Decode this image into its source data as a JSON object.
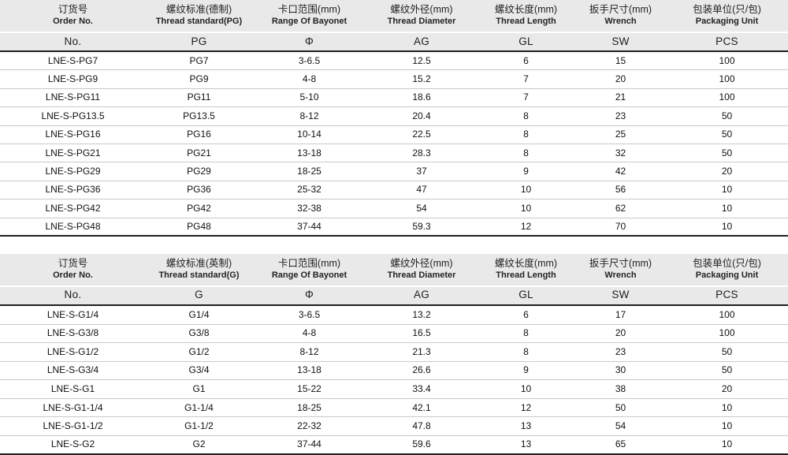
{
  "colors": {
    "header_bg": "#e9e9e9",
    "row_line": "#c9c9c9",
    "strong_line": "#1f1f1f"
  },
  "tables": [
    {
      "name": "pg-metric-thread-table",
      "columns": [
        {
          "cn": "订货号",
          "en": "Order No.",
          "symbol": "No."
        },
        {
          "cn": "螺纹标准(德制)",
          "en": "Thread standard(PG)",
          "symbol": "PG"
        },
        {
          "cn": "卡口范围(mm)",
          "en": "Range Of Bayonet",
          "symbol": "Φ"
        },
        {
          "cn": "螺纹外径(mm)",
          "en": "Thread Diameter",
          "symbol": "AG"
        },
        {
          "cn": "螺纹长度(mm)",
          "en": "Thread Length",
          "symbol": "GL"
        },
        {
          "cn": "扳手尺寸(mm)",
          "en": "Wrench",
          "symbol": "SW"
        },
        {
          "cn": "包装单位(只/包)",
          "en": "Packaging Unit",
          "symbol": "PCS"
        }
      ],
      "rows": [
        [
          "LNE-S-PG7",
          "PG7",
          "3-6.5",
          "12.5",
          "6",
          "15",
          "100"
        ],
        [
          "LNE-S-PG9",
          "PG9",
          "4-8",
          "15.2",
          "7",
          "20",
          "100"
        ],
        [
          "LNE-S-PG11",
          "PG11",
          "5-10",
          "18.6",
          "7",
          "21",
          "100"
        ],
        [
          "LNE-S-PG13.5",
          "PG13.5",
          "8-12",
          "20.4",
          "8",
          "23",
          "50"
        ],
        [
          "LNE-S-PG16",
          "PG16",
          "10-14",
          "22.5",
          "8",
          "25",
          "50"
        ],
        [
          "LNE-S-PG21",
          "PG21",
          "13-18",
          "28.3",
          "8",
          "32",
          "50"
        ],
        [
          "LNE-S-PG29",
          "PG29",
          "18-25",
          "37",
          "9",
          "42",
          "20"
        ],
        [
          "LNE-S-PG36",
          "PG36",
          "25-32",
          "47",
          "10",
          "56",
          "10"
        ],
        [
          "LNE-S-PG42",
          "PG42",
          "32-38",
          "54",
          "10",
          "62",
          "10"
        ],
        [
          "LNE-S-PG48",
          "PG48",
          "37-44",
          "59.3",
          "12",
          "70",
          "10"
        ]
      ]
    },
    {
      "name": "g-imperial-thread-table",
      "columns": [
        {
          "cn": "订货号",
          "en": "Order No.",
          "symbol": "No."
        },
        {
          "cn": "螺纹标准(英制)",
          "en": "Thread standard(G)",
          "symbol": "G"
        },
        {
          "cn": "卡口范围(mm)",
          "en": "Range Of Bayonet",
          "symbol": "Φ"
        },
        {
          "cn": "螺纹外径(mm)",
          "en": "Thread Diameter",
          "symbol": "AG"
        },
        {
          "cn": "螺纹长度(mm)",
          "en": "Thread Length",
          "symbol": "GL"
        },
        {
          "cn": "扳手尺寸(mm)",
          "en": "Wrench",
          "symbol": "SW"
        },
        {
          "cn": "包装单位(只/包)",
          "en": "Packaging Unit",
          "symbol": "PCS"
        }
      ],
      "rows": [
        [
          "LNE-S-G1/4",
          "G1/4",
          "3-6.5",
          "13.2",
          "6",
          "17",
          "100"
        ],
        [
          "LNE-S-G3/8",
          "G3/8",
          "4-8",
          "16.5",
          "8",
          "20",
          "100"
        ],
        [
          "LNE-S-G1/2",
          "G1/2",
          "8-12",
          "21.3",
          "8",
          "23",
          "50"
        ],
        [
          "LNE-S-G3/4",
          "G3/4",
          "13-18",
          "26.6",
          "9",
          "30",
          "50"
        ],
        [
          "LNE-S-G1",
          "G1",
          "15-22",
          "33.4",
          "10",
          "38",
          "20"
        ],
        [
          "LNE-S-G1-1/4",
          "G1-1/4",
          "18-25",
          "42.1",
          "12",
          "50",
          "10"
        ],
        [
          "LNE-S-G1-1/2",
          "G1-1/2",
          "22-32",
          "47.8",
          "13",
          "54",
          "10"
        ],
        [
          "LNE-S-G2",
          "G2",
          "37-44",
          "59.6",
          "13",
          "65",
          "10"
        ]
      ]
    }
  ]
}
